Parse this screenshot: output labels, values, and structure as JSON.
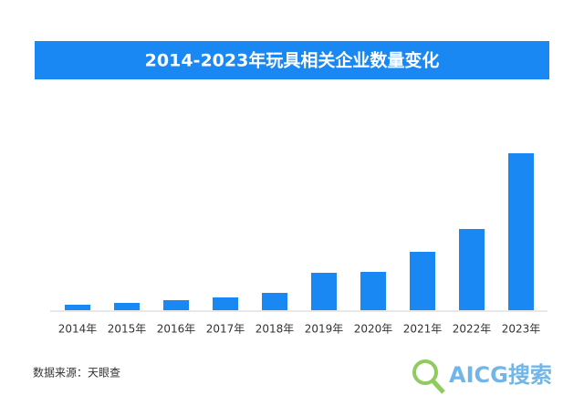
{
  "chart_data": {
    "type": "bar",
    "title": "2014-2023年玩具相关企业数量变化",
    "categories": [
      "2014年",
      "2015年",
      "2016年",
      "2017年",
      "2018年",
      "2019年",
      "2020年",
      "2021年",
      "2022年",
      "2023年"
    ],
    "values": [
      6,
      8,
      11,
      14,
      19,
      41,
      42,
      64,
      89,
      172
    ],
    "color": "#1a88f2",
    "ylim": [
      0,
      180
    ],
    "source": "数据来源：天眼查",
    "watermark": "AICG搜索"
  }
}
